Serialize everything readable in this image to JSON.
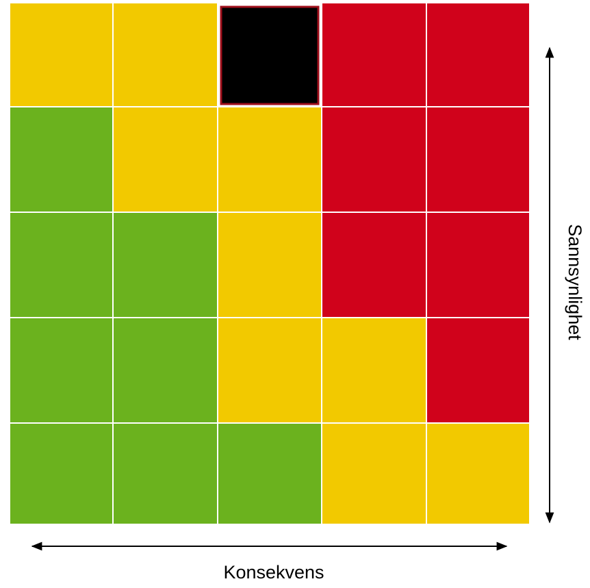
{
  "y_axis_label": "Sannsynlighet",
  "x_axis_label": "Konsekvens"
}
